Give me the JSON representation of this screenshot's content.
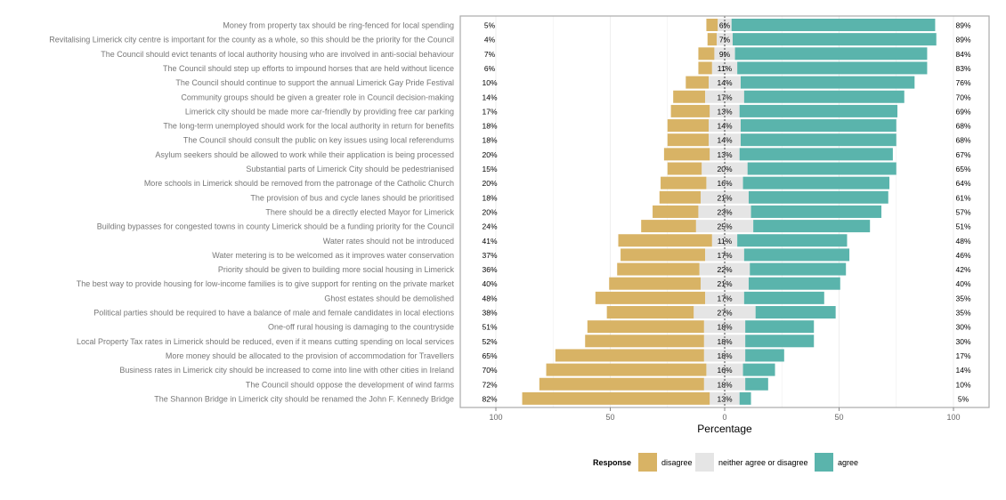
{
  "colors": {
    "disagree": "#D8B365",
    "neutral": "#E5E5E5",
    "agree": "#5AB4AC",
    "panel_border": "#aaaaaa",
    "grid": "#eeeeee",
    "label_text": "#777777",
    "value_text": "#000000"
  },
  "chart_data": {
    "type": "bar",
    "orientation": "horizontal",
    "stacked": "diverging",
    "xlabel": "Percentage",
    "xlim": [
      -100,
      100
    ],
    "xticks": [
      {
        "value": -100,
        "label": "100"
      },
      {
        "value": -50,
        "label": "50"
      },
      {
        "value": 0,
        "label": "0"
      },
      {
        "value": 50,
        "label": "50"
      },
      {
        "value": 100,
        "label": "100"
      }
    ],
    "grid": true,
    "legend": {
      "title": "Response",
      "position": "bottom",
      "entries": [
        "disagree",
        "neither agree or disagree",
        "agree"
      ]
    },
    "items": [
      {
        "label": "Money from property tax should be ring-fenced for local spending",
        "disagree": 5,
        "neutral": 6,
        "agree": 89
      },
      {
        "label": "Revitalising Limerick city centre is important for the county as a whole, so this should be the priority for the Council",
        "disagree": 4,
        "neutral": 7,
        "agree": 89
      },
      {
        "label": "The Council should evict tenants of local authority housing who are involved in anti-social behaviour",
        "disagree": 7,
        "neutral": 9,
        "agree": 84
      },
      {
        "label": "The Council should step up efforts to impound horses that are held without licence",
        "disagree": 6,
        "neutral": 11,
        "agree": 83
      },
      {
        "label": "The Council should continue to support the annual Limerick Gay Pride Festival",
        "disagree": 10,
        "neutral": 14,
        "agree": 76
      },
      {
        "label": "Community groups should be given a greater role in Council decision-making",
        "disagree": 14,
        "neutral": 17,
        "agree": 70
      },
      {
        "label": "Limerick city should be made more car-friendly by providing free car parking",
        "disagree": 17,
        "neutral": 13,
        "agree": 69
      },
      {
        "label": "The long-term unemployed should work for the local authority in return for benefits",
        "disagree": 18,
        "neutral": 14,
        "agree": 68
      },
      {
        "label": "The Council should consult the public on key issues using local referendums",
        "disagree": 18,
        "neutral": 14,
        "agree": 68
      },
      {
        "label": "Asylum seekers should be allowed to work while their application is being processed",
        "disagree": 20,
        "neutral": 13,
        "agree": 67
      },
      {
        "label": "Substantial parts of Limerick City should be pedestrianised",
        "disagree": 15,
        "neutral": 20,
        "agree": 65
      },
      {
        "label": "More schools in Limerick should be removed from the patronage of the Catholic Church",
        "disagree": 20,
        "neutral": 16,
        "agree": 64
      },
      {
        "label": "The provision of bus and cycle lanes should be prioritised",
        "disagree": 18,
        "neutral": 21,
        "agree": 61
      },
      {
        "label": "There should be a directly elected Mayor for Limerick",
        "disagree": 20,
        "neutral": 23,
        "agree": 57
      },
      {
        "label": "Building bypasses for congested towns in county Limerick should be a funding priority for the Council",
        "disagree": 24,
        "neutral": 25,
        "agree": 51
      },
      {
        "label": "Water rates should not be introduced",
        "disagree": 41,
        "neutral": 11,
        "agree": 48
      },
      {
        "label": "Water metering is to be welcomed as it improves water conservation",
        "disagree": 37,
        "neutral": 17,
        "agree": 46
      },
      {
        "label": "Priority should be given to building more social housing in Limerick",
        "disagree": 36,
        "neutral": 22,
        "agree": 42
      },
      {
        "label": "The best way to provide housing for low-income families is to give support for renting on the private market",
        "disagree": 40,
        "neutral": 21,
        "agree": 40
      },
      {
        "label": "Ghost estates should be demolished",
        "disagree": 48,
        "neutral": 17,
        "agree": 35
      },
      {
        "label": "Political parties should be required to have a balance of male and female candidates in local elections",
        "disagree": 38,
        "neutral": 27,
        "agree": 35
      },
      {
        "label": "One-off rural housing is damaging to the countryside",
        "disagree": 51,
        "neutral": 18,
        "agree": 30
      },
      {
        "label": "Local Property Tax rates in Limerick should be reduced, even if it means cutting spending on local services",
        "disagree": 52,
        "neutral": 18,
        "agree": 30
      },
      {
        "label": "More money should be allocated to the provision of accommodation for Travellers",
        "disagree": 65,
        "neutral": 18,
        "agree": 17
      },
      {
        "label": "Business rates in Limerick city should be increased to come into line with other cities in Ireland",
        "disagree": 70,
        "neutral": 16,
        "agree": 14
      },
      {
        "label": "The Council should oppose the development of wind farms",
        "disagree": 72,
        "neutral": 18,
        "agree": 10
      },
      {
        "label": "The Shannon Bridge in Limerick city should be renamed the John F. Kennedy Bridge",
        "disagree": 82,
        "neutral": 13,
        "agree": 5
      }
    ]
  }
}
